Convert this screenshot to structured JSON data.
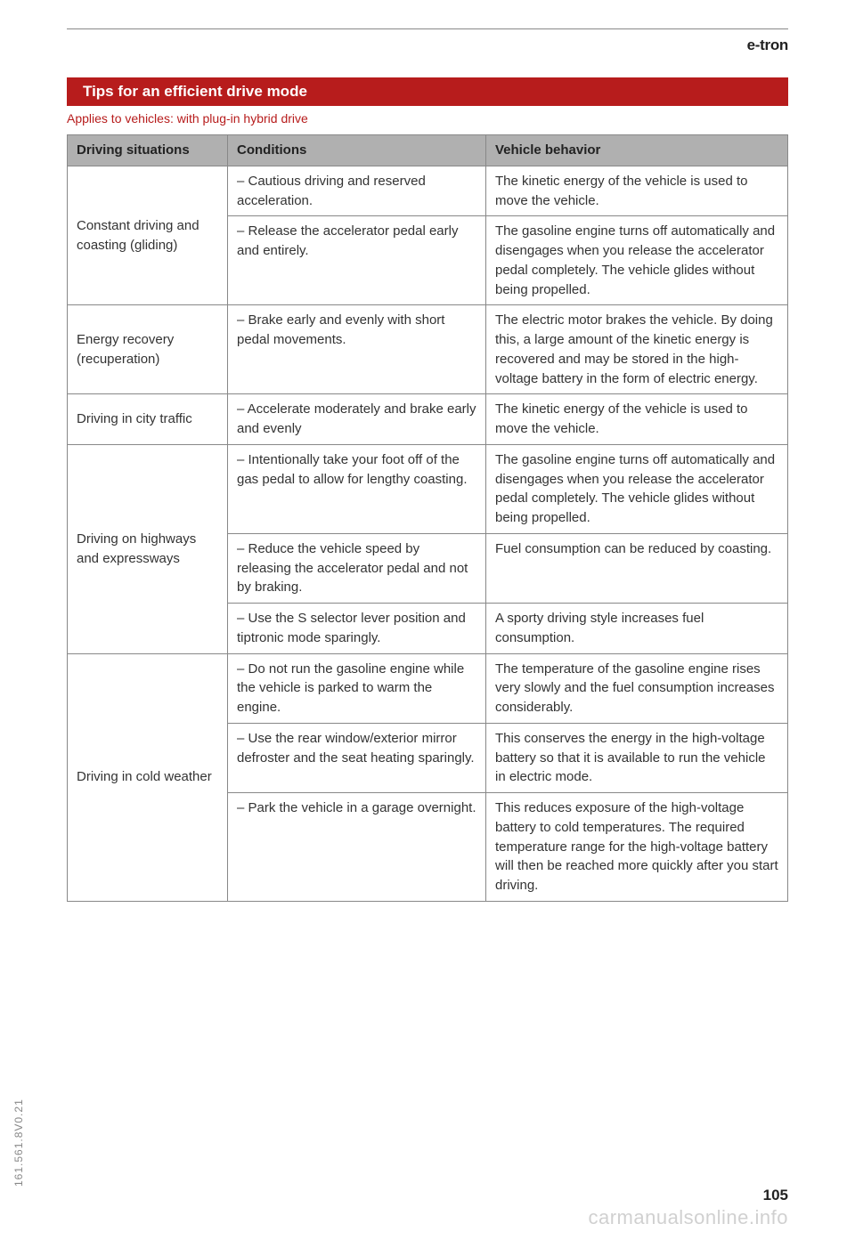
{
  "header": {
    "brand": "e-tron"
  },
  "section": {
    "title": "Tips for an efficient drive mode",
    "applies": "Applies to vehicles: with plug-in hybrid drive"
  },
  "table": {
    "columns": [
      "Driving situations",
      "Conditions",
      "Vehicle behavior"
    ],
    "groups": [
      {
        "situation": "Constant driving and coasting (gliding)",
        "rows": [
          {
            "condition": "– Cautious driving and reserved acceleration.",
            "behavior": "The kinetic energy of the vehicle is used to move the vehicle."
          },
          {
            "condition": "– Release the accelerator pedal early and entirely.",
            "behavior": "The gasoline engine turns off automatically and disengages when you release the accelerator pedal completely. The vehicle glides without being propelled."
          }
        ]
      },
      {
        "situation": "Energy recovery (recuperation)",
        "rows": [
          {
            "condition": "– Brake early and evenly with short pedal movements.",
            "behavior": "The electric motor brakes the vehicle. By doing this, a large amount of the kinetic energy is recovered and may be stored in the high-voltage battery in the form of electric energy."
          }
        ]
      },
      {
        "situation": "Driving in city traffic",
        "rows": [
          {
            "condition": "– Accelerate moderately and brake early and evenly",
            "behavior": "The kinetic energy of the vehicle is used to move the vehicle."
          }
        ]
      },
      {
        "situation": "Driving on highways and expressways",
        "rows": [
          {
            "condition": "– Intentionally take your foot off of the gas pedal to allow for lengthy coasting.",
            "behavior": "The gasoline engine turns off automatically and disengages when you release the accelerator pedal completely. The vehicle glides without being propelled."
          },
          {
            "condition": "– Reduce the vehicle speed by releasing the accelerator pedal and not by braking.",
            "behavior": "Fuel consumption can be reduced by coasting."
          },
          {
            "condition": "– Use the S selector lever position and tiptronic mode sparingly.",
            "behavior": "A sporty driving style increases fuel consumption."
          }
        ]
      },
      {
        "situation": "Driving in cold weather",
        "rows": [
          {
            "condition": "– Do not run the gasoline engine while the vehicle is parked to warm the engine.",
            "behavior": "The temperature of the gasoline engine rises very slowly and the fuel consumption increases considerably."
          },
          {
            "condition": "– Use the rear window/exterior mirror defroster and the seat heating sparingly.",
            "behavior": "This conserves the energy in the high-voltage battery so that it is available to run the vehicle in electric mode."
          },
          {
            "condition": "– Park the vehicle in a garage overnight.",
            "behavior": "This reduces exposure of the high-voltage battery to cold temperatures. The required temperature range for the high-voltage battery will then be reached more quickly after you start driving."
          }
        ]
      }
    ]
  },
  "footer": {
    "side_code": "161.561.8V0.21",
    "page_number": "105",
    "watermark": "carmanualsonline.info"
  },
  "styling": {
    "title_bar_bg": "#b71c1c",
    "title_bar_text": "#ffffff",
    "applies_color": "#b71c1c",
    "th_bg": "#b0b0b0",
    "border_color": "#888888",
    "body_text": "#333333",
    "watermark_color": "rgba(120,120,120,0.35)",
    "font_family": "Arial, Helvetica, sans-serif",
    "body_font_size": 15,
    "title_font_size": 17
  }
}
